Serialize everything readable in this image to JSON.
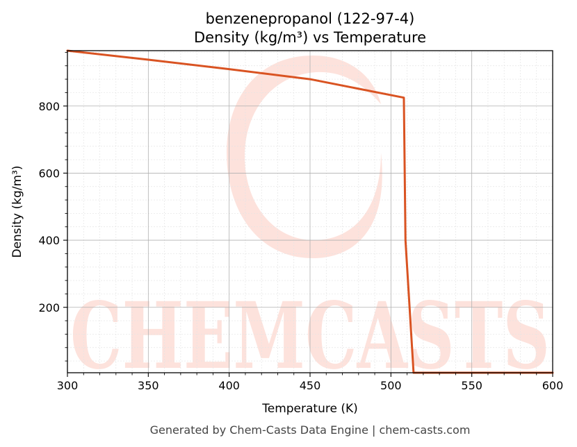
{
  "chart_data": {
    "type": "line",
    "title": "benzenepropanol (122-97-4)",
    "subtitle": "Density (kg/m³) vs Temperature",
    "xlabel": "Temperature (K)",
    "ylabel": "Density (kg/m³)",
    "xlim": [
      300,
      600
    ],
    "ylim": [
      5,
      965
    ],
    "x_ticks": [
      300,
      350,
      400,
      450,
      500,
      550,
      600
    ],
    "y_ticks": [
      200,
      400,
      600,
      800
    ],
    "grid": true,
    "legend": "none",
    "series": [
      {
        "color": "#d95322",
        "x": [
          300,
          350,
          400,
          450,
          508,
          509,
          514,
          600
        ],
        "y": [
          965,
          938,
          910,
          880,
          825,
          400,
          5,
          5
        ]
      }
    ]
  },
  "watermark": {
    "text": "CHEMCASTS",
    "color": "#fde2dc"
  },
  "footer": "Generated by Chem-Casts Data Engine | chem-casts.com"
}
